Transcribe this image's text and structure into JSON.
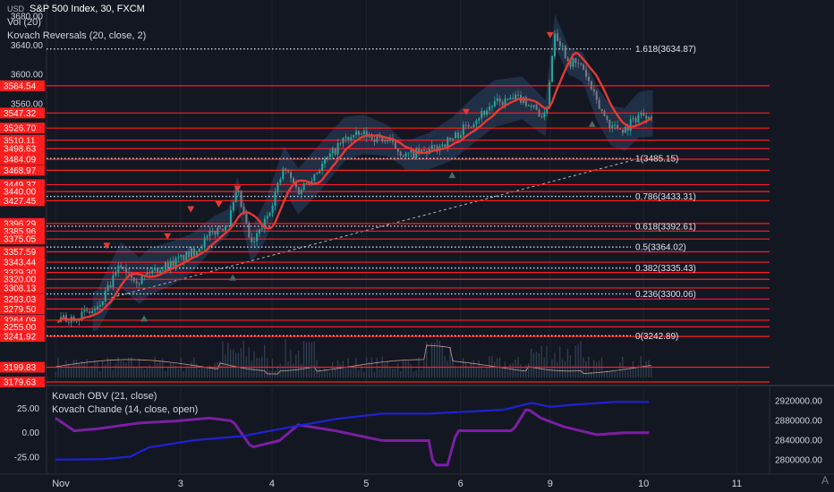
{
  "header": {
    "currency": "USD",
    "title": "S&P 500 Index, 30, FXCM",
    "indicator_1": "Vol (20)",
    "indicator_2": "Kovach Reversals (20, close, 2)",
    "lower_indicator_1": "Kovach OBV (21, close)",
    "lower_indicator_2": "Kovach Chande (14, close, open)",
    "axis_mode": "A"
  },
  "colors": {
    "background": "#131722",
    "price_line": "#ff1e1e",
    "fib_line": "#d1d4dc",
    "trend_line": "#b2b5be",
    "ma_line": "#e53935",
    "band_fill": "#3f6ea3",
    "candle_up": "#26a69a",
    "candle_down": "#787b86",
    "volume_avg": "#f5b7b1",
    "obv": "#1e22d6",
    "chande": "#7b1fa2",
    "marker_down": "#e53935",
    "marker_up": "#4b6a64"
  },
  "chart_data": {
    "type": "candlestick",
    "symbol": "S&P 500 Index, 30, FXCM",
    "price_axis": {
      "ticks": [
        "3680.00",
        "3640.00",
        "3600.00",
        "3560.00"
      ],
      "ylim": [
        3176,
        3692
      ]
    },
    "x_axis": {
      "ticks": [
        "Nov",
        "3",
        "4",
        "5",
        "6",
        "9",
        "10",
        "11"
      ]
    },
    "horizontal_levels": [
      "3584.54",
      "3547.32",
      "3526.70",
      "3510.11",
      "3498.63",
      "3484.09",
      "3468.97",
      "3449.37",
      "3440.00",
      "3427.45",
      "3396.29",
      "3385.96",
      "3375.05",
      "3357.59",
      "3343.44",
      "3329.30",
      "3320.00",
      "3308.13",
      "3293.03",
      "3279.50",
      "3264.09",
      "3255.00",
      "3241.92",
      "3199.83",
      "3179.63"
    ],
    "fibonacci": [
      {
        "label": "1.618(3634.87)",
        "value": 3634.87
      },
      {
        "label": "1(3485.15)",
        "value": 3485.15
      },
      {
        "label": "0.786(3433.31)",
        "value": 3433.31
      },
      {
        "label": "0.618(3392.61)",
        "value": 3392.61
      },
      {
        "label": "0.5(3364.02)",
        "value": 3364.02
      },
      {
        "label": "0.382(3335.43)",
        "value": 3335.43
      },
      {
        "label": "0.236(3300.06)",
        "value": 3300.06
      },
      {
        "label": "0(3242.89)",
        "value": 3242.89
      }
    ],
    "price_path": [
      {
        "t": 0.0,
        "p": 3262
      },
      {
        "t": 0.45,
        "p": 3278
      },
      {
        "t": 0.7,
        "p": 3340
      },
      {
        "t": 0.9,
        "p": 3318
      },
      {
        "t": 1.0,
        "p": 3330
      },
      {
        "t": 1.25,
        "p": 3342
      },
      {
        "t": 1.45,
        "p": 3355
      },
      {
        "t": 1.7,
        "p": 3385
      },
      {
        "t": 1.85,
        "p": 3398
      },
      {
        "t": 1.95,
        "p": 3440
      },
      {
        "t": 2.1,
        "p": 3365
      },
      {
        "t": 2.25,
        "p": 3400
      },
      {
        "t": 2.45,
        "p": 3472
      },
      {
        "t": 2.6,
        "p": 3440
      },
      {
        "t": 2.8,
        "p": 3468
      },
      {
        "t": 3.1,
        "p": 3512
      },
      {
        "t": 3.3,
        "p": 3518
      },
      {
        "t": 3.55,
        "p": 3510
      },
      {
        "t": 3.75,
        "p": 3489
      },
      {
        "t": 4.0,
        "p": 3495
      },
      {
        "t": 4.25,
        "p": 3512
      },
      {
        "t": 4.5,
        "p": 3540
      },
      {
        "t": 4.7,
        "p": 3560
      },
      {
        "t": 5.0,
        "p": 3568
      },
      {
        "t": 5.25,
        "p": 3540
      },
      {
        "t": 5.35,
        "p": 3660
      },
      {
        "t": 5.5,
        "p": 3618
      },
      {
        "t": 5.65,
        "p": 3610
      },
      {
        "t": 5.8,
        "p": 3560
      },
      {
        "t": 5.95,
        "p": 3530
      },
      {
        "t": 6.1,
        "p": 3525
      },
      {
        "t": 6.25,
        "p": 3545
      },
      {
        "t": 6.4,
        "p": 3547
      }
    ],
    "reversal_markers_down": [
      {
        "t": 0.55,
        "p": 3365
      },
      {
        "t": 1.2,
        "p": 3378
      },
      {
        "t": 1.45,
        "p": 3415
      },
      {
        "t": 1.75,
        "p": 3422
      },
      {
        "t": 1.95,
        "p": 3443
      },
      {
        "t": 4.4,
        "p": 3548
      },
      {
        "t": 5.3,
        "p": 3653
      }
    ],
    "reversal_markers_up": [
      {
        "t": 0.95,
        "p": 3266
      },
      {
        "t": 1.9,
        "p": 3322
      },
      {
        "t": 4.25,
        "p": 3462
      },
      {
        "t": 5.75,
        "p": 3532
      }
    ],
    "trend_line": {
      "from": {
        "t": 0.6,
        "p": 3295
      },
      "to": {
        "t": 6.25,
        "p": 3485
      }
    },
    "lower_pane": {
      "left_ticks": [
        "25.00",
        "0.00",
        "-25.00"
      ],
      "left_ylim": [
        -35,
        40
      ],
      "right_ticks": [
        "2920000.00",
        "2880000.00",
        "2840000.00",
        "2800000.00"
      ],
      "right_ylim": [
        2785000,
        2935000
      ],
      "obv": [
        {
          "t": 0.0,
          "v": 2800000
        },
        {
          "t": 0.5,
          "v": 2801000
        },
        {
          "t": 0.8,
          "v": 2806000
        },
        {
          "t": 1.0,
          "v": 2825000
        },
        {
          "t": 1.5,
          "v": 2840000
        },
        {
          "t": 2.0,
          "v": 2848000
        },
        {
          "t": 2.5,
          "v": 2866000
        },
        {
          "t": 3.0,
          "v": 2883000
        },
        {
          "t": 3.5,
          "v": 2894000
        },
        {
          "t": 4.0,
          "v": 2894000
        },
        {
          "t": 4.8,
          "v": 2902000
        },
        {
          "t": 5.1,
          "v": 2916000
        },
        {
          "t": 5.3,
          "v": 2908000
        },
        {
          "t": 5.6,
          "v": 2913000
        },
        {
          "t": 6.0,
          "v": 2918000
        },
        {
          "t": 6.4,
          "v": 2918000
        }
      ],
      "chande": [
        {
          "t": 0.0,
          "v": 15
        },
        {
          "t": 0.2,
          "v": 2
        },
        {
          "t": 0.45,
          "v": 4
        },
        {
          "t": 0.9,
          "v": 10
        },
        {
          "t": 1.3,
          "v": 12
        },
        {
          "t": 1.65,
          "v": 15
        },
        {
          "t": 1.9,
          "v": 12
        },
        {
          "t": 2.1,
          "v": -15
        },
        {
          "t": 2.4,
          "v": -8
        },
        {
          "t": 2.6,
          "v": 8
        },
        {
          "t": 3.0,
          "v": 2
        },
        {
          "t": 3.5,
          "v": -8
        },
        {
          "t": 4.0,
          "v": -8
        },
        {
          "t": 4.05,
          "v": -33
        },
        {
          "t": 4.2,
          "v": -33
        },
        {
          "t": 4.3,
          "v": 2
        },
        {
          "t": 4.9,
          "v": 2
        },
        {
          "t": 5.05,
          "v": 25
        },
        {
          "t": 5.2,
          "v": 15
        },
        {
          "t": 5.45,
          "v": 6
        },
        {
          "t": 5.8,
          "v": -2
        },
        {
          "t": 6.1,
          "v": 0
        },
        {
          "t": 6.4,
          "v": 0
        }
      ]
    }
  }
}
